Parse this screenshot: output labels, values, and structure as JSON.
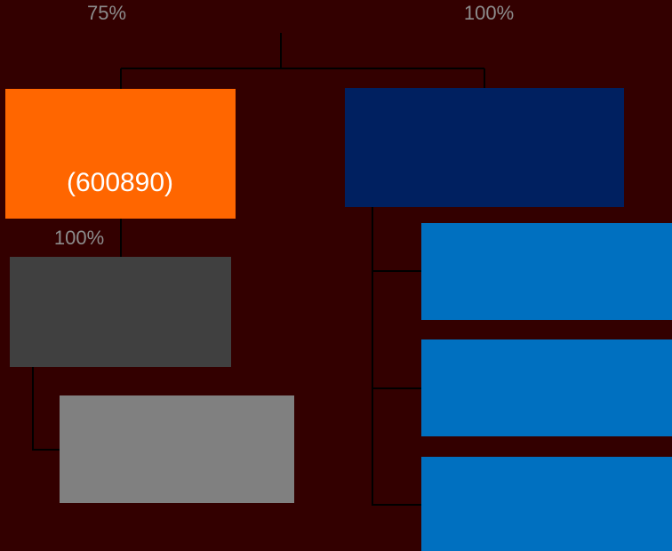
{
  "edges": [
    {
      "label": "75%"
    },
    {
      "label": "100%"
    },
    {
      "label": "100%"
    }
  ],
  "nodes": [
    {
      "label": "(600890)"
    }
  ]
}
